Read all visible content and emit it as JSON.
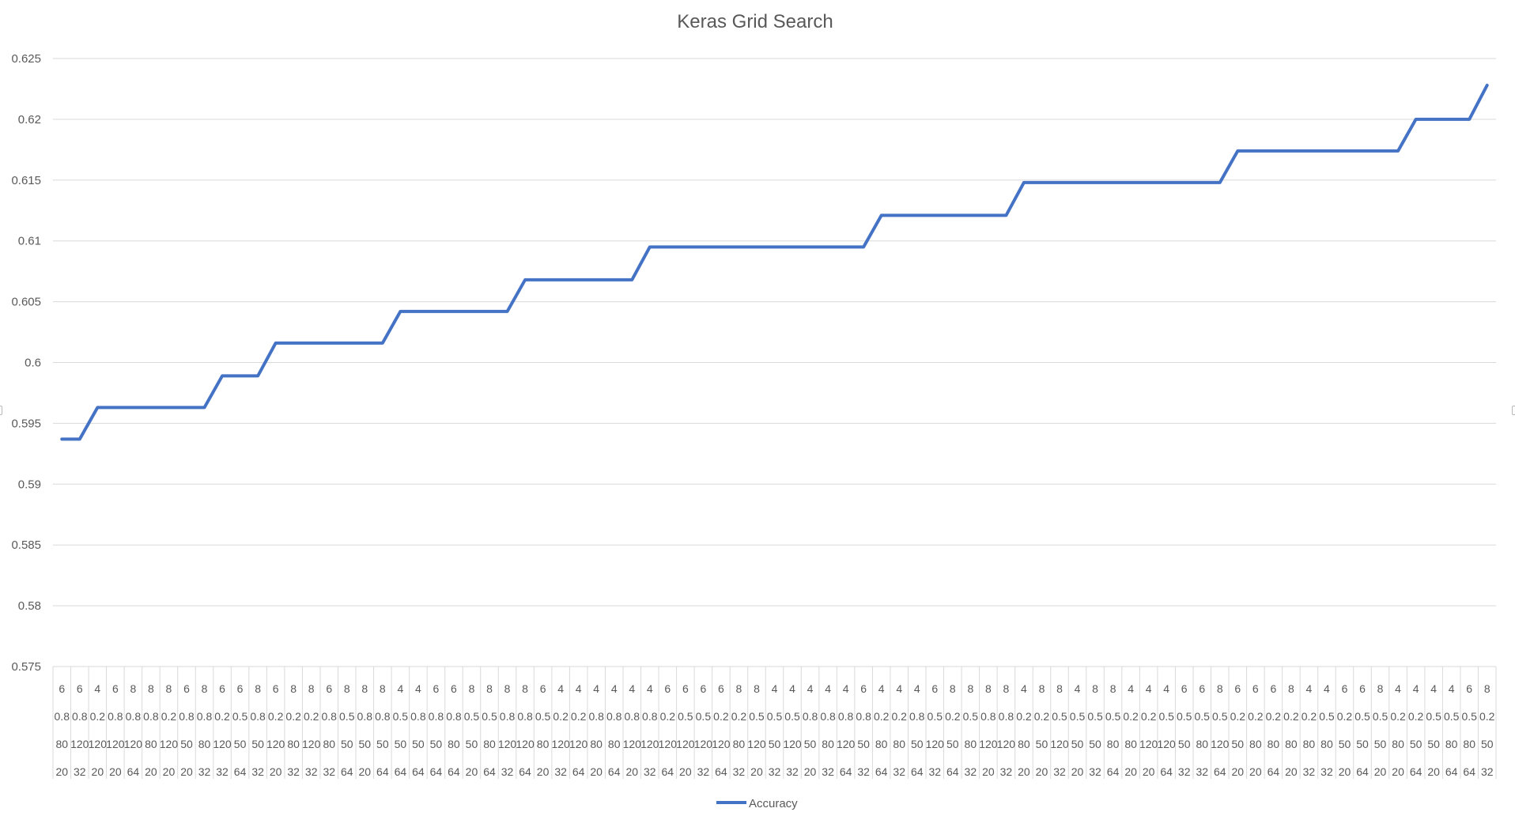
{
  "chart_data": {
    "type": "line",
    "title": "Keras Grid Search",
    "xlabel": "",
    "ylabel": "",
    "ylim": [
      0.575,
      0.625
    ],
    "y_ticks": [
      "0.575",
      "0.58",
      "0.585",
      "0.59",
      "0.595",
      "0.6",
      "0.605",
      "0.61",
      "0.615",
      "0.62",
      "0.625"
    ],
    "grid": true,
    "legend_position": "bottom",
    "line_color": "#4472C4",
    "gridline_color": "#d9d9d9",
    "categories": [
      [
        "6",
        "0.8",
        "80",
        "20"
      ],
      [
        "6",
        "0.8",
        "120",
        "32"
      ],
      [
        "4",
        "0.2",
        "120",
        "20"
      ],
      [
        "6",
        "0.8",
        "120",
        "20"
      ],
      [
        "8",
        "0.8",
        "120",
        "64"
      ],
      [
        "8",
        "0.8",
        "80",
        "20"
      ],
      [
        "8",
        "0.2",
        "120",
        "20"
      ],
      [
        "6",
        "0.8",
        "50",
        "20"
      ],
      [
        "8",
        "0.8",
        "80",
        "32"
      ],
      [
        "6",
        "0.2",
        "120",
        "32"
      ],
      [
        "6",
        "0.5",
        "50",
        "64"
      ],
      [
        "8",
        "0.8",
        "50",
        "32"
      ],
      [
        "6",
        "0.2",
        "120",
        "20"
      ],
      [
        "8",
        "0.2",
        "80",
        "32"
      ],
      [
        "8",
        "0.2",
        "120",
        "32"
      ],
      [
        "6",
        "0.8",
        "80",
        "32"
      ],
      [
        "8",
        "0.5",
        "50",
        "64"
      ],
      [
        "8",
        "0.8",
        "50",
        "20"
      ],
      [
        "8",
        "0.8",
        "50",
        "64"
      ],
      [
        "4",
        "0.5",
        "50",
        "64"
      ],
      [
        "4",
        "0.8",
        "50",
        "64"
      ],
      [
        "6",
        "0.8",
        "50",
        "64"
      ],
      [
        "6",
        "0.8",
        "80",
        "64"
      ],
      [
        "8",
        "0.5",
        "50",
        "20"
      ],
      [
        "8",
        "0.5",
        "80",
        "64"
      ],
      [
        "8",
        "0.8",
        "120",
        "32"
      ],
      [
        "8",
        "0.8",
        "120",
        "64"
      ],
      [
        "6",
        "0.5",
        "80",
        "20"
      ],
      [
        "4",
        "0.2",
        "120",
        "32"
      ],
      [
        "4",
        "0.2",
        "120",
        "64"
      ],
      [
        "4",
        "0.8",
        "80",
        "20"
      ],
      [
        "4",
        "0.8",
        "80",
        "64"
      ],
      [
        "4",
        "0.8",
        "120",
        "20"
      ],
      [
        "4",
        "0.8",
        "120",
        "32"
      ],
      [
        "6",
        "0.2",
        "120",
        "64"
      ],
      [
        "6",
        "0.5",
        "120",
        "20"
      ],
      [
        "6",
        "0.5",
        "120",
        "32"
      ],
      [
        "6",
        "0.2",
        "120",
        "64"
      ],
      [
        "8",
        "0.2",
        "80",
        "32"
      ],
      [
        "8",
        "0.5",
        "120",
        "20"
      ],
      [
        "4",
        "0.5",
        "50",
        "32"
      ],
      [
        "4",
        "0.5",
        "120",
        "32"
      ],
      [
        "4",
        "0.8",
        "50",
        "20"
      ],
      [
        "4",
        "0.8",
        "80",
        "32"
      ],
      [
        "4",
        "0.8",
        "120",
        "64"
      ],
      [
        "6",
        "0.8",
        "50",
        "32"
      ],
      [
        "4",
        "0.2",
        "80",
        "64"
      ],
      [
        "4",
        "0.2",
        "80",
        "32"
      ],
      [
        "4",
        "0.8",
        "50",
        "64"
      ],
      [
        "6",
        "0.5",
        "120",
        "32"
      ],
      [
        "8",
        "0.2",
        "50",
        "64"
      ],
      [
        "8",
        "0.5",
        "80",
        "32"
      ],
      [
        "8",
        "0.8",
        "120",
        "20"
      ],
      [
        "8",
        "0.8",
        "120",
        "32"
      ],
      [
        "4",
        "0.2",
        "80",
        "20"
      ],
      [
        "8",
        "0.2",
        "50",
        "20"
      ],
      [
        "8",
        "0.5",
        "120",
        "32"
      ],
      [
        "4",
        "0.5",
        "50",
        "20"
      ],
      [
        "8",
        "0.5",
        "50",
        "32"
      ],
      [
        "8",
        "0.5",
        "80",
        "64"
      ],
      [
        "4",
        "0.2",
        "80",
        "20"
      ],
      [
        "4",
        "0.2",
        "120",
        "20"
      ],
      [
        "4",
        "0.5",
        "120",
        "64"
      ],
      [
        "6",
        "0.5",
        "50",
        "32"
      ],
      [
        "6",
        "0.5",
        "80",
        "32"
      ],
      [
        "8",
        "0.5",
        "120",
        "64"
      ],
      [
        "6",
        "0.2",
        "50",
        "20"
      ],
      [
        "6",
        "0.2",
        "80",
        "20"
      ],
      [
        "6",
        "0.2",
        "80",
        "64"
      ],
      [
        "8",
        "0.2",
        "80",
        "20"
      ],
      [
        "4",
        "0.2",
        "80",
        "32"
      ],
      [
        "4",
        "0.5",
        "80",
        "32"
      ],
      [
        "6",
        "0.2",
        "50",
        "20"
      ],
      [
        "6",
        "0.5",
        "50",
        "64"
      ],
      [
        "8",
        "0.5",
        "50",
        "20"
      ],
      [
        "4",
        "0.2",
        "80",
        "20"
      ],
      [
        "4",
        "0.2",
        "50",
        "64"
      ],
      [
        "4",
        "0.5",
        "50",
        "20"
      ],
      [
        "4",
        "0.5",
        "80",
        "64"
      ],
      [
        "6",
        "0.5",
        "80",
        "64"
      ],
      [
        "8",
        "0.2",
        "50",
        "32"
      ]
    ],
    "series": [
      {
        "name": "Accuracy",
        "values": [
          0.5937,
          0.5937,
          0.5963,
          0.5963,
          0.5963,
          0.5963,
          0.5963,
          0.5963,
          0.5963,
          0.5989,
          0.5989,
          0.5989,
          0.6016,
          0.6016,
          0.6016,
          0.6016,
          0.6016,
          0.6016,
          0.6016,
          0.6042,
          0.6042,
          0.6042,
          0.6042,
          0.6042,
          0.6042,
          0.6042,
          0.6068,
          0.6068,
          0.6068,
          0.6068,
          0.6068,
          0.6068,
          0.6068,
          0.6095,
          0.6095,
          0.6095,
          0.6095,
          0.6095,
          0.6095,
          0.6095,
          0.6095,
          0.6095,
          0.6095,
          0.6095,
          0.6095,
          0.6095,
          0.6121,
          0.6121,
          0.6121,
          0.6121,
          0.6121,
          0.6121,
          0.6121,
          0.6121,
          0.6148,
          0.6148,
          0.6148,
          0.6148,
          0.6148,
          0.6148,
          0.6148,
          0.6148,
          0.6148,
          0.6148,
          0.6148,
          0.6148,
          0.6174,
          0.6174,
          0.6174,
          0.6174,
          0.6174,
          0.6174,
          0.6174,
          0.6174,
          0.6174,
          0.6174,
          0.62,
          0.62,
          0.62,
          0.62,
          0.6228
        ]
      }
    ]
  }
}
